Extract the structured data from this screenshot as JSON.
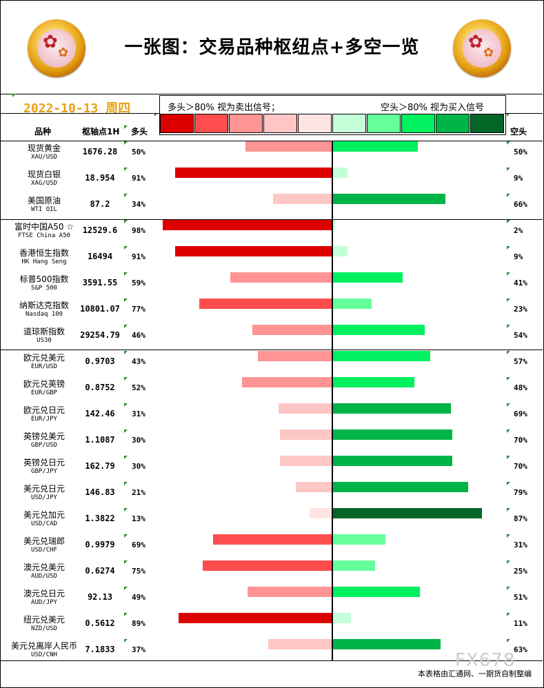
{
  "header": {
    "title": "一张图：交易品种枢纽点+多空一览",
    "date": "2022-10-13",
    "weekday": "周四",
    "legend_long": "多头＞80% 视为卖出信号；",
    "legend_short": "空头＞80% 视为买入信号"
  },
  "columns": {
    "symbol": "品种",
    "pivot": "枢轴点1H",
    "long": "多头",
    "short": "空头"
  },
  "colors": {
    "long_scale": [
      "#dd0000",
      "#ff4d4d",
      "#ff9494",
      "#ffc6c6",
      "#ffe4e4"
    ],
    "short_scale": [
      "#c4ffd8",
      "#66ff9c",
      "#00f060",
      "#00b448",
      "#046626"
    ]
  },
  "chart_data": {
    "type": "bar",
    "rows": [
      {
        "cn": "现货黄金",
        "en": "XAU/USD",
        "pivot": "1676.28",
        "long": 50,
        "short": 50,
        "long_label": "50%",
        "short_label": "50%"
      },
      {
        "cn": "现货白银",
        "en": "XAG/USD",
        "pivot": "18.954",
        "long": 91,
        "short": 9,
        "long_label": "91%",
        "short_label": "9%"
      },
      {
        "cn": "美国原油",
        "en": "WTI OIL",
        "pivot": "87.2",
        "long": 34,
        "short": 66,
        "long_label": "34%",
        "short_label": "66%"
      },
      {
        "cn": "富时中国A50 ☆",
        "en": "FTSE China A50",
        "pivot": "12529.6",
        "long": 98,
        "short": 2,
        "long_label": "98%",
        "short_label": "2%"
      },
      {
        "cn": "香港恒生指数",
        "en": "HK Hang Seng",
        "pivot": "16494",
        "long": 91,
        "short": 9,
        "long_label": "91%",
        "short_label": "9%"
      },
      {
        "cn": "标普500指数",
        "en": "S&P 500",
        "pivot": "3591.55",
        "long": 59,
        "short": 41,
        "long_label": "59%",
        "short_label": "41%"
      },
      {
        "cn": "纳斯达克指数",
        "en": "Nasdaq 100",
        "pivot": "10801.07",
        "long": 77,
        "short": 23,
        "long_label": "77%",
        "short_label": "23%"
      },
      {
        "cn": "道琼斯指数",
        "en": "US30",
        "pivot": "29254.79",
        "long": 46,
        "short": 54,
        "long_label": "46%",
        "short_label": "54%"
      },
      {
        "cn": "欧元兑美元",
        "en": "EUR/USD",
        "pivot": "0.9703",
        "long": 43,
        "short": 57,
        "long_label": "43%",
        "short_label": "57%"
      },
      {
        "cn": "欧元兑英镑",
        "en": "EUR/GBP",
        "pivot": "0.8752",
        "long": 52,
        "short": 48,
        "long_label": "52%",
        "short_label": "48%"
      },
      {
        "cn": "欧元兑日元",
        "en": "EUR/JPY",
        "pivot": "142.46",
        "long": 31,
        "short": 69,
        "long_label": "31%",
        "short_label": "69%"
      },
      {
        "cn": "英镑兑美元",
        "en": "GBP/USD",
        "pivot": "1.1087",
        "long": 30,
        "short": 70,
        "long_label": "30%",
        "short_label": "70%"
      },
      {
        "cn": "英镑兑日元",
        "en": "GBP/JPY",
        "pivot": "162.79",
        "long": 30,
        "short": 70,
        "long_label": "30%",
        "short_label": "70%"
      },
      {
        "cn": "美元兑日元",
        "en": "USD/JPY",
        "pivot": "146.83",
        "long": 21,
        "short": 79,
        "long_label": "21%",
        "short_label": "79%"
      },
      {
        "cn": "美元兑加元",
        "en": "USD/CAD",
        "pivot": "1.3822",
        "long": 13,
        "short": 87,
        "long_label": "13%",
        "short_label": "87%"
      },
      {
        "cn": "美元兑瑞郎",
        "en": "USD/CHF",
        "pivot": "0.9979",
        "long": 69,
        "short": 31,
        "long_label": "69%",
        "short_label": "31%"
      },
      {
        "cn": "澳元兑美元",
        "en": "AUD/USD",
        "pivot": "0.6274",
        "long": 75,
        "short": 25,
        "long_label": "75%",
        "short_label": "25%"
      },
      {
        "cn": "澳元兑日元",
        "en": "AUD/JPY",
        "pivot": "92.13",
        "long": 49,
        "short": 51,
        "long_label": "49%",
        "short_label": "51%"
      },
      {
        "cn": "纽元兑美元",
        "en": "NZD/USD",
        "pivot": "0.5612",
        "long": 89,
        "short": 11,
        "long_label": "89%",
        "short_label": "11%"
      },
      {
        "cn": "美元兑离岸人民币",
        "en": "USD/CNH",
        "pivot": "7.1833",
        "long": 37,
        "short": 63,
        "long_label": "37%",
        "short_label": "63%"
      }
    ]
  },
  "footer": {
    "credit": "本表格由汇通网、一期货自制整编",
    "watermark": "FX678"
  }
}
